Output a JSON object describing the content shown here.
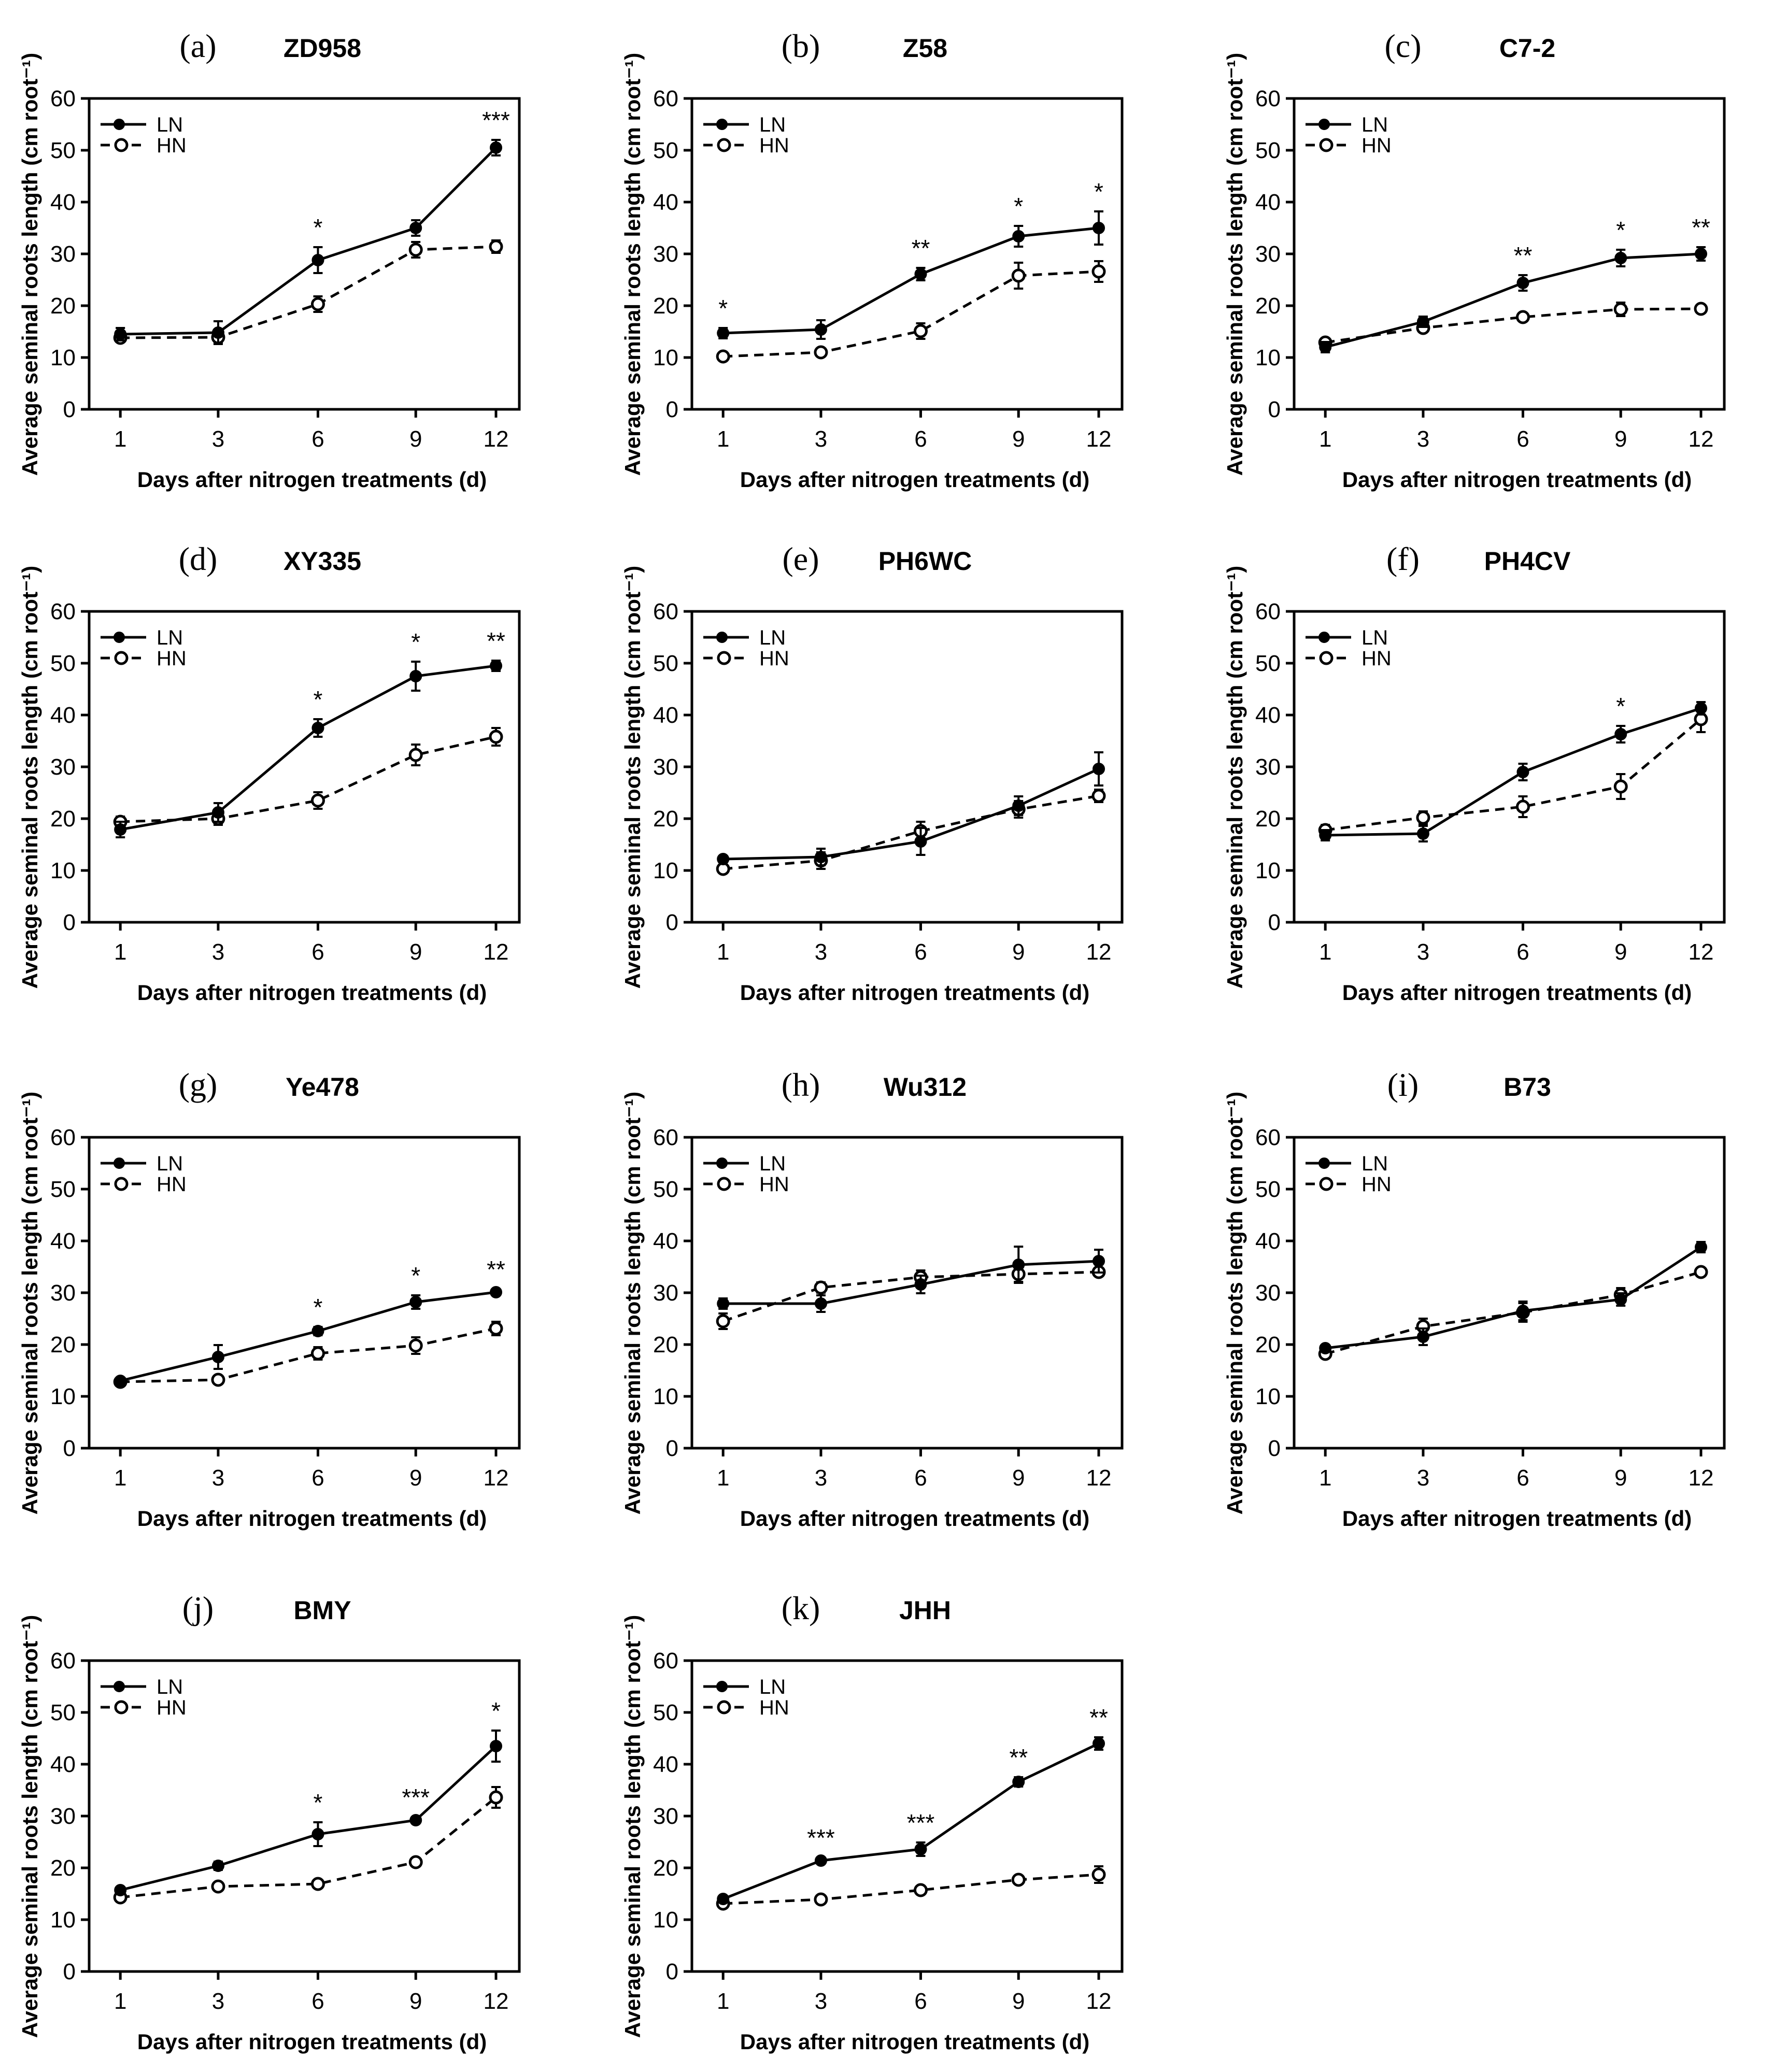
{
  "figure": {
    "legend": {
      "ln": "LN",
      "hn": "HN"
    },
    "series_styles": {
      "LN": "solid line, filled circle",
      "HN": "dashed line, open circle"
    },
    "colors": {
      "line": "#000000",
      "background": "#ffffff"
    }
  },
  "chart_data": [
    {
      "type": "line",
      "panel": "(a)",
      "title": "ZD958",
      "xlabel": "Days after nitrogen treatments (d)",
      "ylabel": "Average seminal roots length (cm root⁻¹)",
      "categories": [
        "1",
        "3",
        "6",
        "9",
        "12"
      ],
      "yticks": [
        "0",
        "10",
        "20",
        "30",
        "40",
        "50",
        "60"
      ],
      "ylim": [
        0,
        60
      ],
      "series": [
        {
          "name": "LN",
          "values": [
            14.5,
            14.8,
            28.8,
            35.0,
            50.5
          ],
          "errors": [
            1.2,
            2.2,
            2.5,
            1.5,
            1.5
          ]
        },
        {
          "name": "HN",
          "values": [
            13.8,
            13.9,
            20.3,
            30.8,
            31.4
          ],
          "errors": [
            0.8,
            1.0,
            1.5,
            1.5,
            1.2
          ]
        }
      ],
      "significance": [
        "",
        "",
        "*",
        "",
        "***"
      ]
    },
    {
      "type": "line",
      "panel": "(b)",
      "title": "Z58",
      "xlabel": "Days after nitrogen treatments (d)",
      "ylabel": "Average seminal roots length (cm root⁻¹)",
      "categories": [
        "1",
        "3",
        "6",
        "9",
        "12"
      ],
      "yticks": [
        "0",
        "10",
        "20",
        "30",
        "40",
        "50",
        "60"
      ],
      "ylim": [
        0,
        60
      ],
      "series": [
        {
          "name": "LN",
          "values": [
            14.7,
            15.4,
            26.1,
            33.4,
            35.0
          ],
          "errors": [
            1.0,
            1.8,
            1.2,
            2.0,
            3.2
          ]
        },
        {
          "name": "HN",
          "values": [
            10.2,
            11.0,
            15.1,
            25.8,
            26.6
          ],
          "errors": [
            0.5,
            0.6,
            1.5,
            2.5,
            2.0
          ]
        }
      ],
      "significance": [
        "*",
        "",
        "**",
        "*",
        "*"
      ]
    },
    {
      "type": "line",
      "panel": "(c)",
      "title": "C7-2",
      "xlabel": "Days after nitrogen treatments (d)",
      "ylabel": "Average seminal roots length (cm root⁻¹)",
      "categories": [
        "1",
        "3",
        "6",
        "9",
        "12"
      ],
      "yticks": [
        "0",
        "10",
        "20",
        "30",
        "40",
        "50",
        "60"
      ],
      "ylim": [
        0,
        60
      ],
      "series": [
        {
          "name": "LN",
          "values": [
            12.0,
            16.9,
            24.4,
            29.2,
            30.0
          ],
          "errors": [
            1.0,
            1.0,
            1.5,
            1.6,
            1.3
          ]
        },
        {
          "name": "HN",
          "values": [
            12.9,
            15.7,
            17.8,
            19.3,
            19.4
          ],
          "errors": [
            0.7,
            0.6,
            0.6,
            1.3,
            0.7
          ]
        }
      ],
      "significance": [
        "",
        "",
        "**",
        "*",
        "**"
      ]
    },
    {
      "type": "line",
      "panel": "(d)",
      "title": "XY335",
      "xlabel": "Days after nitrogen treatments (d)",
      "ylabel": "Average seminal roots length (cm root⁻¹)",
      "categories": [
        "1",
        "3",
        "6",
        "9",
        "12"
      ],
      "yticks": [
        "0",
        "10",
        "20",
        "30",
        "40",
        "50",
        "60"
      ],
      "ylim": [
        0,
        60
      ],
      "series": [
        {
          "name": "LN",
          "values": [
            17.9,
            21.2,
            37.5,
            47.5,
            49.5
          ],
          "errors": [
            1.5,
            1.8,
            1.7,
            2.8,
            1.0
          ]
        },
        {
          "name": "HN",
          "values": [
            19.4,
            20.0,
            23.5,
            32.3,
            35.8
          ],
          "errors": [
            1.0,
            1.2,
            1.6,
            2.0,
            1.7
          ]
        }
      ],
      "significance": [
        "",
        "",
        "*",
        "*",
        "**"
      ]
    },
    {
      "type": "line",
      "panel": "(e)",
      "title": "PH6WC",
      "xlabel": "Days after nitrogen treatments (d)",
      "ylabel": "Average seminal roots length (cm root⁻¹)",
      "categories": [
        "1",
        "3",
        "6",
        "9",
        "12"
      ],
      "yticks": [
        "0",
        "10",
        "20",
        "30",
        "40",
        "50",
        "60"
      ],
      "ylim": [
        0,
        60
      ],
      "series": [
        {
          "name": "LN",
          "values": [
            12.2,
            12.6,
            15.6,
            22.5,
            29.6
          ],
          "errors": [
            0.6,
            1.6,
            2.6,
            1.8,
            3.2
          ]
        },
        {
          "name": "HN",
          "values": [
            10.3,
            11.9,
            17.6,
            21.8,
            24.4
          ],
          "errors": [
            0.6,
            1.6,
            1.8,
            1.6,
            1.2
          ]
        }
      ],
      "significance": [
        "",
        "",
        "",
        "",
        ""
      ]
    },
    {
      "type": "line",
      "panel": "(f)",
      "title": "PH4CV",
      "xlabel": "Days after nitrogen treatments (d)",
      "ylabel": "Average seminal roots length (cm root⁻¹)",
      "categories": [
        "1",
        "3",
        "6",
        "9",
        "12"
      ],
      "yticks": [
        "0",
        "10",
        "20",
        "30",
        "40",
        "50",
        "60"
      ],
      "ylim": [
        0,
        60
      ],
      "series": [
        {
          "name": "LN",
          "values": [
            16.8,
            17.1,
            29.0,
            36.3,
            41.3
          ],
          "errors": [
            1.0,
            1.5,
            1.6,
            1.6,
            1.2
          ]
        },
        {
          "name": "HN",
          "values": [
            17.8,
            20.2,
            22.3,
            26.2,
            39.2
          ],
          "errors": [
            1.0,
            1.2,
            2.0,
            2.4,
            2.5
          ]
        }
      ],
      "significance": [
        "",
        "",
        "",
        "*",
        ""
      ]
    },
    {
      "type": "line",
      "panel": "(g)",
      "title": "Ye478",
      "xlabel": "Days after nitrogen treatments (d)",
      "ylabel": "Average seminal roots length (cm root⁻¹)",
      "categories": [
        "1",
        "3",
        "6",
        "9",
        "12"
      ],
      "yticks": [
        "0",
        "10",
        "20",
        "30",
        "40",
        "50",
        "60"
      ],
      "ylim": [
        0,
        60
      ],
      "series": [
        {
          "name": "LN",
          "values": [
            13.0,
            17.6,
            22.6,
            28.2,
            30.1
          ],
          "errors": [
            0.6,
            2.3,
            0.8,
            1.3,
            0.6
          ]
        },
        {
          "name": "HN",
          "values": [
            12.8,
            13.2,
            18.3,
            19.8,
            23.1
          ],
          "errors": [
            0.6,
            0.8,
            1.2,
            1.6,
            1.3
          ]
        }
      ],
      "significance": [
        "",
        "",
        "*",
        "*",
        "**"
      ]
    },
    {
      "type": "line",
      "panel": "(h)",
      "title": "Wu312",
      "xlabel": "Days after nitrogen treatments (d)",
      "ylabel": "Average seminal roots length (cm root⁻¹)",
      "categories": [
        "1",
        "3",
        "6",
        "9",
        "12"
      ],
      "yticks": [
        "0",
        "10",
        "20",
        "30",
        "40",
        "50",
        "60"
      ],
      "ylim": [
        0,
        60
      ],
      "series": [
        {
          "name": "LN",
          "values": [
            27.9,
            27.9,
            31.6,
            35.4,
            36.1
          ],
          "errors": [
            1.0,
            1.6,
            1.7,
            3.5,
            2.2
          ]
        },
        {
          "name": "HN",
          "values": [
            24.5,
            31.0,
            33.0,
            33.6,
            34.0
          ],
          "errors": [
            1.5,
            1.0,
            1.3,
            1.5,
            0.8
          ]
        }
      ],
      "significance": [
        "",
        "",
        "",
        "",
        ""
      ]
    },
    {
      "type": "line",
      "panel": "(i)",
      "title": "B73",
      "xlabel": "Days after nitrogen treatments (d)",
      "ylabel": "Average seminal roots length (cm root⁻¹)",
      "categories": [
        "1",
        "3",
        "6",
        "9",
        "12"
      ],
      "yticks": [
        "0",
        "10",
        "20",
        "30",
        "40",
        "50",
        "60"
      ],
      "ylim": [
        0,
        60
      ],
      "series": [
        {
          "name": "LN",
          "values": [
            19.3,
            21.5,
            26.5,
            28.7,
            38.8
          ],
          "errors": [
            0.6,
            1.6,
            1.8,
            1.2,
            1.0
          ]
        },
        {
          "name": "HN",
          "values": [
            18.2,
            23.5,
            26.2,
            29.6,
            34.0
          ],
          "errors": [
            0.7,
            1.5,
            1.8,
            1.3,
            0.6
          ]
        }
      ],
      "significance": [
        "",
        "",
        "",
        "",
        ""
      ]
    },
    {
      "type": "line",
      "panel": "(j)",
      "title": "BMY",
      "xlabel": "Days after nitrogen treatments (d)",
      "ylabel": "Average seminal roots length (cm root⁻¹)",
      "categories": [
        "1",
        "3",
        "6",
        "9",
        "12"
      ],
      "yticks": [
        "0",
        "10",
        "20",
        "30",
        "40",
        "50",
        "60"
      ],
      "ylim": [
        0,
        60
      ],
      "series": [
        {
          "name": "LN",
          "values": [
            15.7,
            20.4,
            26.5,
            29.2,
            43.5
          ],
          "errors": [
            0.6,
            0.8,
            2.3,
            0.6,
            3.0
          ]
        },
        {
          "name": "HN",
          "values": [
            14.3,
            16.4,
            16.9,
            21.1,
            33.6
          ],
          "errors": [
            0.5,
            0.6,
            0.8,
            0.6,
            2.0
          ]
        }
      ],
      "significance": [
        "",
        "",
        "*",
        "***",
        "*"
      ]
    },
    {
      "type": "line",
      "panel": "(k)",
      "title": "JHH",
      "xlabel": "Days after nitrogen treatments (d)",
      "ylabel": "Average seminal roots length (cm root⁻¹)",
      "categories": [
        "1",
        "3",
        "6",
        "9",
        "12"
      ],
      "yticks": [
        "0",
        "10",
        "20",
        "30",
        "40",
        "50",
        "60"
      ],
      "ylim": [
        0,
        60
      ],
      "series": [
        {
          "name": "LN",
          "values": [
            14.0,
            21.4,
            23.6,
            36.6,
            44.0
          ],
          "errors": [
            0.5,
            0.6,
            1.3,
            0.9,
            1.2
          ]
        },
        {
          "name": "HN",
          "values": [
            13.1,
            13.9,
            15.7,
            17.7,
            18.7
          ],
          "errors": [
            0.4,
            0.5,
            0.5,
            0.8,
            1.6
          ]
        }
      ],
      "significance": [
        "",
        "***",
        "***",
        "**",
        "**"
      ]
    }
  ]
}
